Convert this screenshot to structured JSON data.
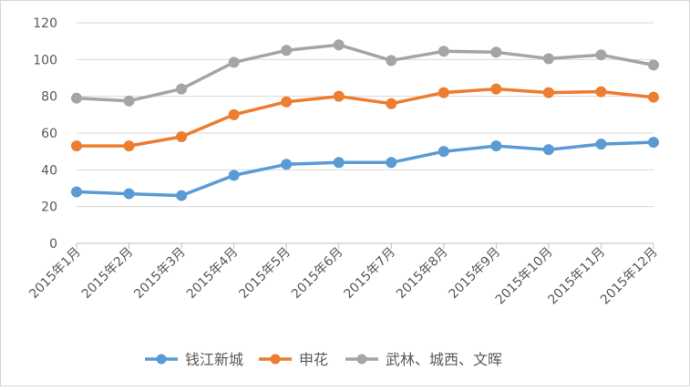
{
  "chart_data": {
    "type": "line",
    "title": "",
    "xlabel": "",
    "ylabel": "",
    "ylim": [
      0,
      120
    ],
    "yticks": [
      0,
      20,
      40,
      60,
      80,
      100,
      120
    ],
    "grid": true,
    "legend_position": "bottom",
    "categories": [
      "2015年1月",
      "2015年2月",
      "2015年3月",
      "2015年4月",
      "2015年5月",
      "2015年6月",
      "2015年7月",
      "2015年8月",
      "2015年9月",
      "2015年10月",
      "2015年11月",
      "2015年12月"
    ],
    "series": [
      {
        "name": "钱江新城",
        "color": "#5b9bd5",
        "values": [
          28,
          27,
          26,
          37,
          43,
          44,
          44,
          50,
          53,
          51,
          54,
          55
        ]
      },
      {
        "name": "申花",
        "color": "#ed7d31",
        "values": [
          53,
          53,
          58,
          70,
          77,
          80,
          76,
          82,
          84,
          82,
          82.5,
          79.5
        ]
      },
      {
        "name": "武林、城西、文晖",
        "color": "#a5a5a5",
        "values": [
          79,
          77.5,
          84,
          98.5,
          105,
          108,
          99.5,
          104.5,
          104,
          100.5,
          102.5,
          97
        ]
      }
    ]
  }
}
